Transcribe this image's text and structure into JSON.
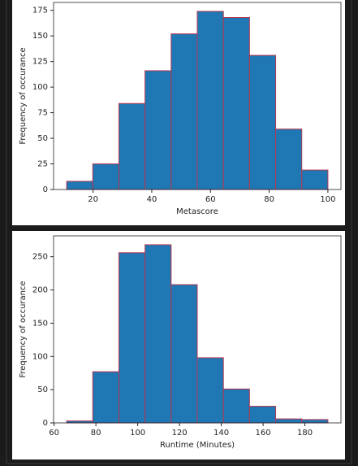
{
  "chart_data": [
    {
      "type": "histogram",
      "xlabel": "Metascore",
      "ylabel": "Frequency of occurance",
      "bins": [
        11,
        19.9,
        28.8,
        37.7,
        46.6,
        55.5,
        64.4,
        73.3,
        82.2,
        91.1,
        100
      ],
      "values": [
        8,
        25,
        84,
        116,
        152,
        174,
        168,
        131,
        59,
        19
      ],
      "color": "#1f77b4",
      "edgecolor": "#b5384f",
      "xlim": [
        6.55,
        104.45
      ],
      "ylim": [
        0,
        182.7
      ],
      "xticks": [
        20,
        40,
        60,
        80,
        100
      ],
      "yticks": [
        0,
        25,
        50,
        75,
        100,
        125,
        150,
        175
      ]
    },
    {
      "type": "histogram",
      "xlabel": "Runtime (Minutes)",
      "ylabel": "Frequency of occurance",
      "bins": [
        66,
        78.5,
        91,
        103.5,
        116,
        128.5,
        141,
        153.5,
        166,
        178.5,
        191
      ],
      "values": [
        3,
        77,
        256,
        268,
        208,
        98,
        51,
        25,
        6,
        5
      ],
      "color": "#1f77b4",
      "edgecolor": "#b5384f",
      "xlim": [
        59.75,
        197.25
      ],
      "ylim": [
        0,
        281.4
      ],
      "xticks": [
        60,
        80,
        100,
        120,
        140,
        160,
        180
      ],
      "yticks": [
        0,
        50,
        100,
        150,
        200,
        250
      ]
    }
  ]
}
